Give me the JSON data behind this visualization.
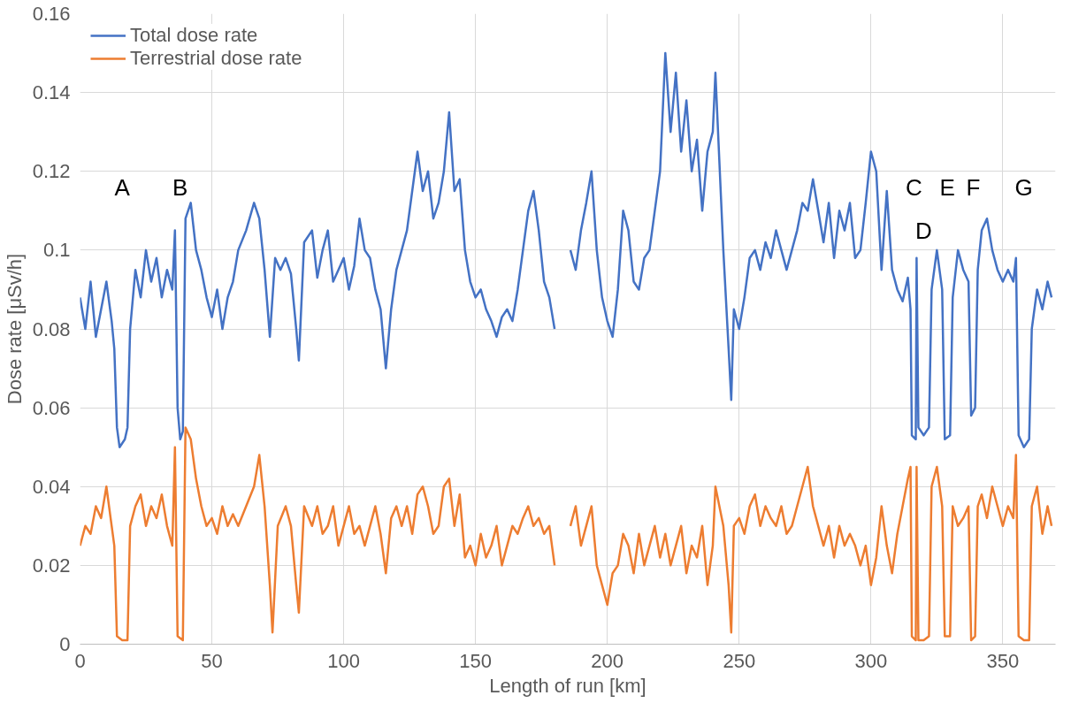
{
  "chart_data": {
    "type": "line",
    "xlabel": "Length of run [km]",
    "ylabel": "Dose rate [μSv/h]",
    "xlim": [
      0,
      370
    ],
    "xticks": [
      0,
      50,
      100,
      150,
      200,
      250,
      300,
      350
    ],
    "ylim": [
      0,
      0.16
    ],
    "yticks": [
      0,
      0.02,
      0.04,
      0.06,
      0.08,
      0.1,
      0.12,
      0.14,
      0.16
    ],
    "grid": true,
    "legend": "top left",
    "marker": "none",
    "line_style": "solid",
    "annotations": [
      "A",
      "B",
      "C",
      "D",
      "E",
      "F",
      "G"
    ],
    "series": [
      {
        "name": "Total dose rate",
        "color": "#4472c4",
        "x": [
          0,
          2,
          4,
          6,
          8,
          10,
          12,
          13,
          14,
          15,
          17,
          18,
          19,
          21,
          23,
          25,
          27,
          29,
          31,
          33,
          35,
          36,
          37,
          38,
          39,
          40,
          42,
          44,
          46,
          48,
          50,
          52,
          54,
          56,
          58,
          60,
          63,
          66,
          68,
          70,
          72,
          74,
          76,
          78,
          80,
          82,
          83,
          85,
          88,
          90,
          92,
          94,
          96,
          98,
          100,
          102,
          104,
          106,
          108,
          110,
          112,
          114,
          116,
          118,
          120,
          122,
          124,
          126,
          128,
          130,
          132,
          134,
          136,
          138,
          140,
          142,
          144,
          146,
          148,
          150,
          152,
          154,
          156,
          158,
          160,
          162,
          164,
          166,
          168,
          170,
          172,
          174,
          176,
          178,
          180,
          184,
          186,
          188,
          190,
          192,
          194,
          196,
          198,
          200,
          202,
          204,
          206,
          208,
          210,
          212,
          214,
          216,
          218,
          220,
          222,
          224,
          226,
          228,
          230,
          232,
          234,
          236,
          238,
          240,
          241,
          244,
          246,
          247,
          248,
          250,
          252,
          254,
          256,
          258,
          260,
          262,
          264,
          266,
          268,
          270,
          272,
          274,
          276,
          278,
          280,
          282,
          284,
          286,
          288,
          290,
          292,
          294,
          296,
          298,
          300,
          302,
          304,
          306,
          308,
          310,
          312,
          314,
          315,
          315.5,
          317,
          317.3,
          318,
          320,
          322,
          323,
          325,
          327,
          328,
          330,
          331,
          333,
          335,
          337,
          338,
          339.5,
          340.5,
          342,
          344,
          346,
          348,
          350,
          352,
          354,
          355,
          356,
          358,
          360,
          361,
          363,
          365,
          367,
          368.5
        ],
        "values": [
          0.088,
          0.08,
          0.092,
          0.078,
          0.085,
          0.092,
          0.082,
          0.075,
          0.055,
          0.05,
          0.052,
          0.055,
          0.08,
          0.095,
          0.088,
          0.1,
          0.092,
          0.098,
          0.088,
          0.095,
          0.09,
          0.105,
          0.06,
          0.052,
          0.054,
          0.108,
          0.112,
          0.1,
          0.095,
          0.088,
          0.083,
          0.09,
          0.08,
          0.088,
          0.092,
          0.1,
          0.105,
          0.112,
          0.108,
          0.095,
          0.078,
          0.098,
          0.095,
          0.098,
          0.094,
          0.08,
          0.072,
          0.102,
          0.105,
          0.093,
          0.1,
          0.105,
          0.092,
          0.095,
          0.098,
          0.09,
          0.096,
          0.108,
          0.1,
          0.098,
          0.09,
          0.085,
          0.07,
          0.085,
          0.095,
          0.1,
          0.105,
          0.115,
          0.125,
          0.115,
          0.12,
          0.108,
          0.112,
          0.12,
          0.135,
          0.115,
          0.118,
          0.1,
          0.092,
          0.088,
          0.09,
          0.085,
          0.082,
          0.078,
          0.083,
          0.085,
          0.082,
          0.09,
          0.1,
          0.11,
          0.115,
          0.105,
          0.092,
          0.088,
          0.08,
          null,
          0.1,
          0.095,
          0.105,
          0.112,
          0.12,
          0.1,
          0.088,
          0.082,
          0.078,
          0.09,
          0.11,
          0.105,
          0.092,
          0.09,
          0.098,
          0.1,
          0.11,
          0.12,
          0.15,
          0.13,
          0.145,
          0.125,
          0.138,
          0.12,
          0.128,
          0.11,
          0.125,
          0.13,
          0.145,
          0.1,
          0.075,
          0.062,
          0.085,
          0.08,
          0.088,
          0.098,
          0.1,
          0.095,
          0.102,
          0.098,
          0.105,
          0.1,
          0.095,
          0.1,
          0.105,
          0.112,
          0.11,
          0.118,
          0.11,
          0.102,
          0.112,
          0.098,
          0.11,
          0.105,
          0.112,
          0.098,
          0.1,
          0.112,
          0.125,
          0.12,
          0.095,
          0.115,
          0.095,
          0.09,
          0.087,
          0.093,
          0.085,
          0.053,
          0.052,
          0.098,
          0.055,
          0.053,
          0.055,
          0.09,
          0.1,
          0.09,
          0.052,
          0.053,
          0.088,
          0.1,
          0.095,
          0.092,
          0.058,
          0.06,
          0.095,
          0.105,
          0.108,
          0.1,
          0.095,
          0.092,
          0.095,
          0.092,
          0.098,
          0.053,
          0.05,
          0.052,
          0.08,
          0.09,
          0.085,
          0.092,
          0.088
        ]
      },
      {
        "name": "Terrestrial dose rate",
        "color": "#ed7d31",
        "x": [
          0,
          2,
          4,
          6,
          8,
          10,
          12,
          13,
          14,
          16,
          18,
          19,
          21,
          23,
          25,
          27,
          29,
          31,
          33,
          35,
          36,
          37,
          39,
          40,
          42,
          44,
          46,
          48,
          50,
          52,
          54,
          56,
          58,
          60,
          63,
          66,
          68,
          70,
          72,
          73,
          75,
          78,
          80,
          82,
          83,
          85,
          88,
          90,
          92,
          94,
          96,
          98,
          100,
          102,
          104,
          106,
          108,
          110,
          112,
          114,
          116,
          118,
          120,
          122,
          124,
          126,
          128,
          130,
          132,
          134,
          136,
          138,
          140,
          142,
          144,
          146,
          148,
          150,
          152,
          154,
          156,
          158,
          160,
          162,
          164,
          166,
          168,
          170,
          172,
          174,
          176,
          178,
          180,
          184,
          186,
          188,
          190,
          192,
          194,
          196,
          198,
          200,
          202,
          204,
          206,
          208,
          210,
          212,
          214,
          216,
          218,
          220,
          222,
          224,
          226,
          228,
          230,
          232,
          234,
          236,
          238,
          240,
          241,
          244,
          246,
          247,
          248,
          250,
          252,
          254,
          256,
          258,
          260,
          262,
          264,
          266,
          268,
          270,
          272,
          274,
          276,
          278,
          280,
          282,
          284,
          286,
          288,
          290,
          292,
          294,
          296,
          298,
          300,
          302,
          304,
          306,
          308,
          310,
          312,
          314,
          315,
          315.5,
          317,
          317.3,
          318,
          320,
          322,
          323,
          325,
          327,
          328,
          330,
          331,
          333,
          335,
          337,
          338,
          339.5,
          340.5,
          342,
          344,
          346,
          348,
          350,
          352,
          354,
          355,
          356,
          358,
          360,
          361,
          363,
          365,
          367,
          368.5
        ],
        "values": [
          0.025,
          0.03,
          0.028,
          0.035,
          0.032,
          0.04,
          0.03,
          0.025,
          0.002,
          0.001,
          0.001,
          0.03,
          0.035,
          0.038,
          0.03,
          0.035,
          0.032,
          0.038,
          0.03,
          0.025,
          0.05,
          0.002,
          0.001,
          0.055,
          0.052,
          0.042,
          0.035,
          0.03,
          0.032,
          0.028,
          0.035,
          0.03,
          0.033,
          0.03,
          0.035,
          0.04,
          0.048,
          0.035,
          0.015,
          0.003,
          0.03,
          0.035,
          0.03,
          0.015,
          0.008,
          0.035,
          0.03,
          0.035,
          0.028,
          0.03,
          0.035,
          0.025,
          0.03,
          0.035,
          0.028,
          0.03,
          0.025,
          0.03,
          0.035,
          0.028,
          0.018,
          0.032,
          0.035,
          0.03,
          0.035,
          0.028,
          0.038,
          0.04,
          0.035,
          0.028,
          0.03,
          0.04,
          0.042,
          0.03,
          0.038,
          0.022,
          0.025,
          0.02,
          0.028,
          0.022,
          0.025,
          0.03,
          0.02,
          0.025,
          0.03,
          0.028,
          0.032,
          0.035,
          0.03,
          0.032,
          0.028,
          0.03,
          0.02,
          null,
          0.03,
          0.035,
          0.025,
          0.03,
          0.035,
          0.02,
          0.015,
          0.01,
          0.018,
          0.02,
          0.028,
          0.025,
          0.018,
          0.028,
          0.02,
          0.025,
          0.03,
          0.022,
          0.028,
          0.02,
          0.025,
          0.03,
          0.018,
          0.025,
          0.022,
          0.03,
          0.015,
          0.025,
          0.04,
          0.03,
          0.015,
          0.003,
          0.03,
          0.032,
          0.028,
          0.035,
          0.038,
          0.03,
          0.035,
          0.032,
          0.03,
          0.035,
          0.028,
          0.03,
          0.035,
          0.04,
          0.045,
          0.035,
          0.03,
          0.025,
          0.03,
          0.022,
          0.03,
          0.025,
          0.028,
          0.025,
          0.02,
          0.025,
          0.015,
          0.022,
          0.035,
          0.025,
          0.018,
          0.028,
          0.035,
          0.042,
          0.045,
          0.002,
          0.001,
          0.045,
          0.001,
          0.001,
          0.002,
          0.04,
          0.045,
          0.035,
          0.002,
          0.002,
          0.035,
          0.03,
          0.032,
          0.035,
          0.001,
          0.002,
          0.035,
          0.038,
          0.032,
          0.04,
          0.035,
          0.03,
          0.035,
          0.032,
          0.048,
          0.002,
          0.001,
          0.001,
          0.035,
          0.04,
          0.028,
          0.035,
          0.03
        ]
      }
    ]
  }
}
